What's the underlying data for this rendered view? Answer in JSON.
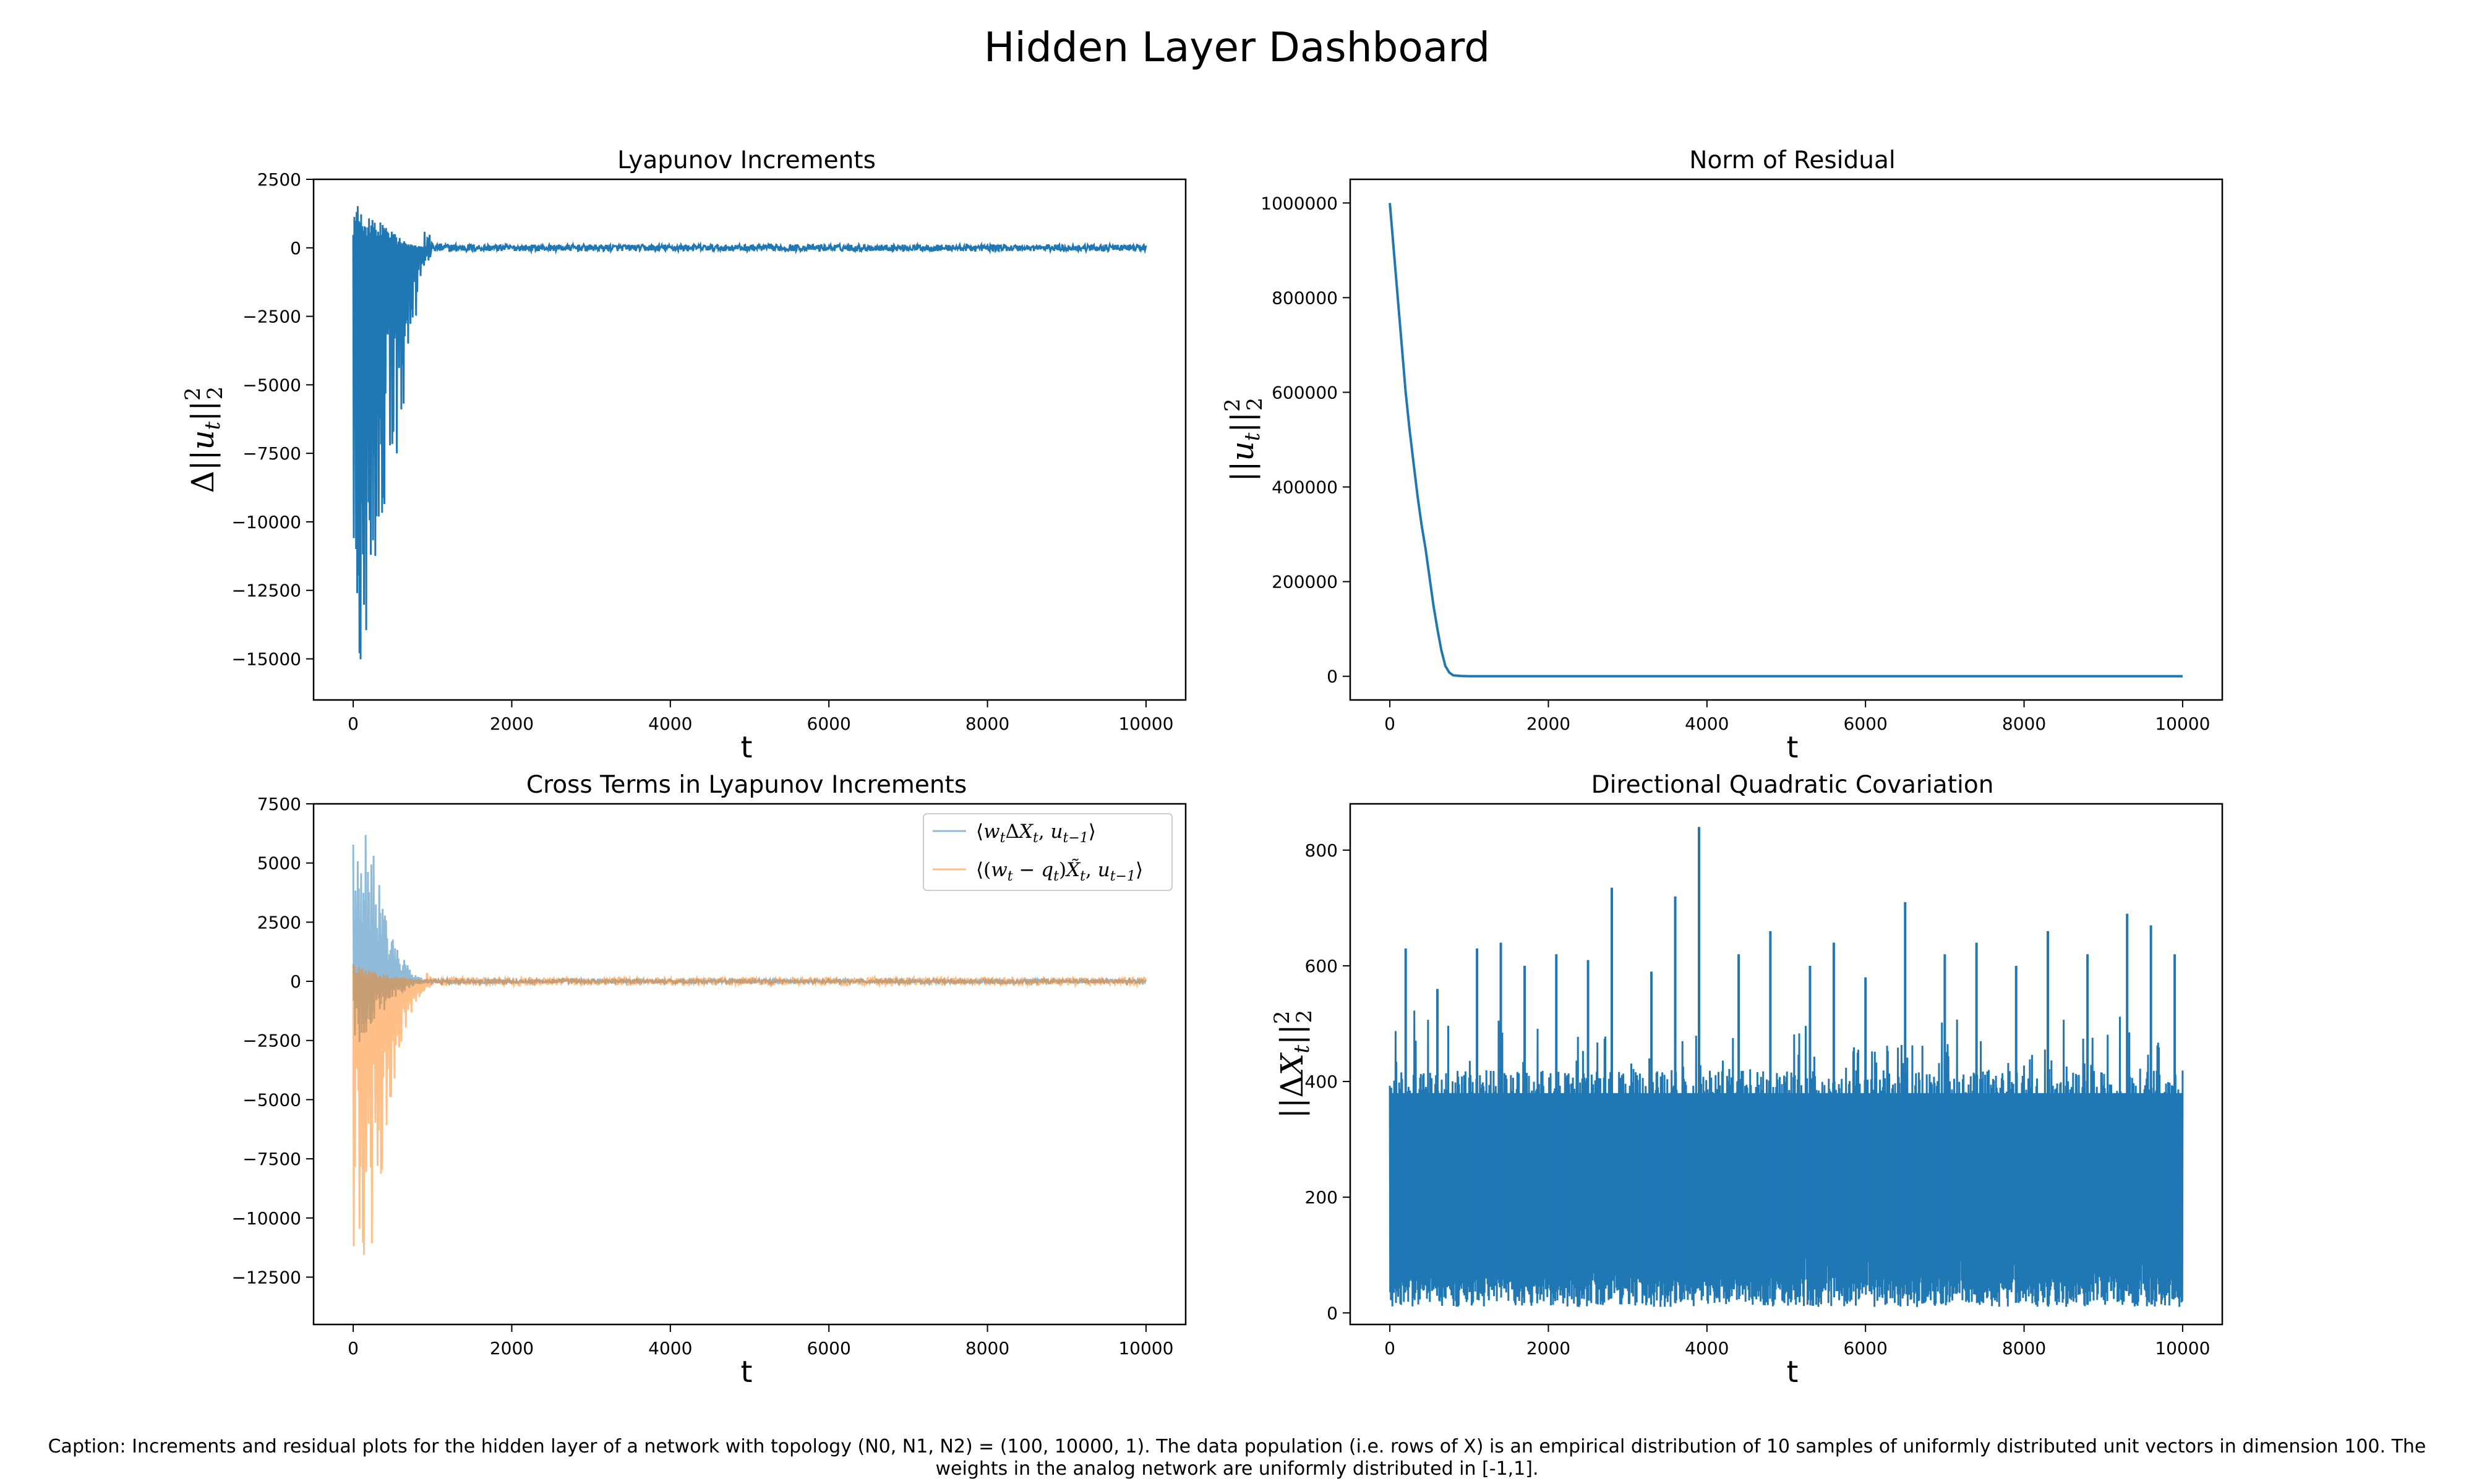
{
  "figure": {
    "title": "Hidden Layer Dashboard",
    "caption": "Caption: Increments and residual plots for the hidden layer of a network with topology (N0, N1, N2) = (100, 10000, 1). The data population (i.e. rows of X) is an empirical distribution of 10 samples of uniformly distributed unit vectors in dimension 100. The weights in the analog network are uniformly distributed in [-1,1].",
    "colors": {
      "blue": "#1f77b4",
      "orange": "#ff7f0e"
    }
  },
  "chart_data": [
    {
      "type": "line",
      "title": "Lyapunov Increments",
      "xlabel": "t",
      "ylabel": "Δ||u_t||₂²",
      "xlim": [
        -500,
        10500
      ],
      "ylim": [
        -16500,
        2500
      ],
      "xticks": [
        "0",
        "2000",
        "4000",
        "6000",
        "8000",
        "10000"
      ],
      "yticks": [
        "2500",
        "0",
        "−2500",
        "−5000",
        "−7500",
        "−10000",
        "−12500",
        "−15000"
      ],
      "grid": false,
      "series": [
        {
          "color": "#1f77b4",
          "envelope_t": [
            0,
            100,
            200,
            300,
            400,
            500,
            600,
            700,
            800,
            1000,
            2000,
            4000,
            6000,
            8000,
            10000
          ],
          "upper": [
            1500,
            1600,
            1400,
            1100,
            900,
            600,
            350,
            200,
            80,
            40,
            40,
            40,
            40,
            40,
            40
          ],
          "lower": [
            -16200,
            -15000,
            -14000,
            -12000,
            -10000,
            -8500,
            -6500,
            -4500,
            -2500,
            -200,
            -150,
            -150,
            -150,
            -150,
            -150
          ]
        }
      ]
    },
    {
      "type": "line",
      "title": "Norm of Residual",
      "xlabel": "t",
      "ylabel": "||u_t||₂²",
      "xlim": [
        -500,
        10500
      ],
      "ylim": [
        -50000,
        1050000
      ],
      "xticks": [
        "0",
        "2000",
        "4000",
        "6000",
        "8000",
        "10000"
      ],
      "yticks": [
        "1000000",
        "800000",
        "600000",
        "400000",
        "200000",
        "0"
      ],
      "grid": false,
      "series": [
        {
          "color": "#1f77b4",
          "x": [
            0,
            50,
            100,
            150,
            200,
            250,
            300,
            350,
            400,
            450,
            500,
            550,
            600,
            650,
            700,
            750,
            800,
            900,
            1000,
            2000,
            4000,
            6000,
            8000,
            10000
          ],
          "y": [
            1000000,
            900000,
            800000,
            700000,
            600000,
            520000,
            450000,
            380000,
            320000,
            270000,
            210000,
            150000,
            100000,
            55000,
            22000,
            8000,
            2000,
            500,
            200,
            200,
            200,
            200,
            200,
            200
          ]
        }
      ]
    },
    {
      "type": "line",
      "title": "Cross Terms in Lyapunov Increments",
      "xlabel": "t",
      "xlim": [
        -500,
        10500
      ],
      "ylim": [
        -14500,
        7500
      ],
      "xticks": [
        "0",
        "2000",
        "4000",
        "6000",
        "8000",
        "10000"
      ],
      "yticks": [
        "7500",
        "5000",
        "2500",
        "0",
        "−2500",
        "−5000",
        "−7500",
        "−10000",
        "−12500"
      ],
      "grid": false,
      "legend": "top-right",
      "series": [
        {
          "name": "⟨w_tΔX_t, u_{t−1}⟩",
          "color": "#1f77b4",
          "alpha": 0.5,
          "envelope_t": [
            0,
            100,
            200,
            300,
            400,
            500,
            600,
            700,
            800,
            1000,
            2000,
            4000,
            6000,
            8000,
            10000
          ],
          "upper": [
            5800,
            5800,
            6600,
            4500,
            3000,
            2000,
            1200,
            600,
            200,
            100,
            100,
            100,
            100,
            100,
            100
          ],
          "lower": [
            -3000,
            -2500,
            -2000,
            -1500,
            -1200,
            -900,
            -600,
            -300,
            -150,
            -100,
            -100,
            -100,
            -100,
            -100,
            -100
          ]
        },
        {
          "name": "⟨(w_t − q_t)X̃_t, u_{t−1}⟩",
          "color": "#ff7f0e",
          "alpha": 0.5,
          "envelope_t": [
            0,
            100,
            200,
            300,
            400,
            500,
            600,
            700,
            800,
            1000,
            2000,
            4000,
            6000,
            8000,
            10000
          ],
          "upper": [
            800,
            600,
            500,
            400,
            300,
            250,
            200,
            150,
            100,
            80,
            80,
            80,
            80,
            80,
            80
          ],
          "lower": [
            -13400,
            -12500,
            -12000,
            -9500,
            -7500,
            -5000,
            -3000,
            -1800,
            -800,
            -200,
            -200,
            -200,
            -200,
            -200,
            -200
          ]
        }
      ]
    },
    {
      "type": "line",
      "title": "Directional Quadratic Covariation",
      "xlabel": "t",
      "ylabel": "||ΔX_t||₂²",
      "xlim": [
        -500,
        10500
      ],
      "ylim": [
        -20,
        880
      ],
      "xticks": [
        "0",
        "2000",
        "4000",
        "6000",
        "8000",
        "10000"
      ],
      "yticks": [
        "800",
        "600",
        "400",
        "200",
        "0"
      ],
      "grid": false,
      "series": [
        {
          "color": "#1f77b4",
          "band_min": 10,
          "band_core_low": 60,
          "band_core_high": 420,
          "spikes_t": [
            200,
            600,
            1100,
            1400,
            1700,
            2100,
            2500,
            2800,
            3300,
            3600,
            3900,
            4400,
            4800,
            5300,
            5600,
            6000,
            6500,
            7000,
            7400,
            7900,
            8300,
            8800,
            9300,
            9600,
            9900
          ],
          "spikes_y": [
            630,
            560,
            630,
            640,
            600,
            620,
            610,
            735,
            590,
            720,
            840,
            620,
            660,
            600,
            640,
            580,
            710,
            620,
            640,
            600,
            660,
            620,
            690,
            670,
            620
          ]
        }
      ]
    }
  ]
}
